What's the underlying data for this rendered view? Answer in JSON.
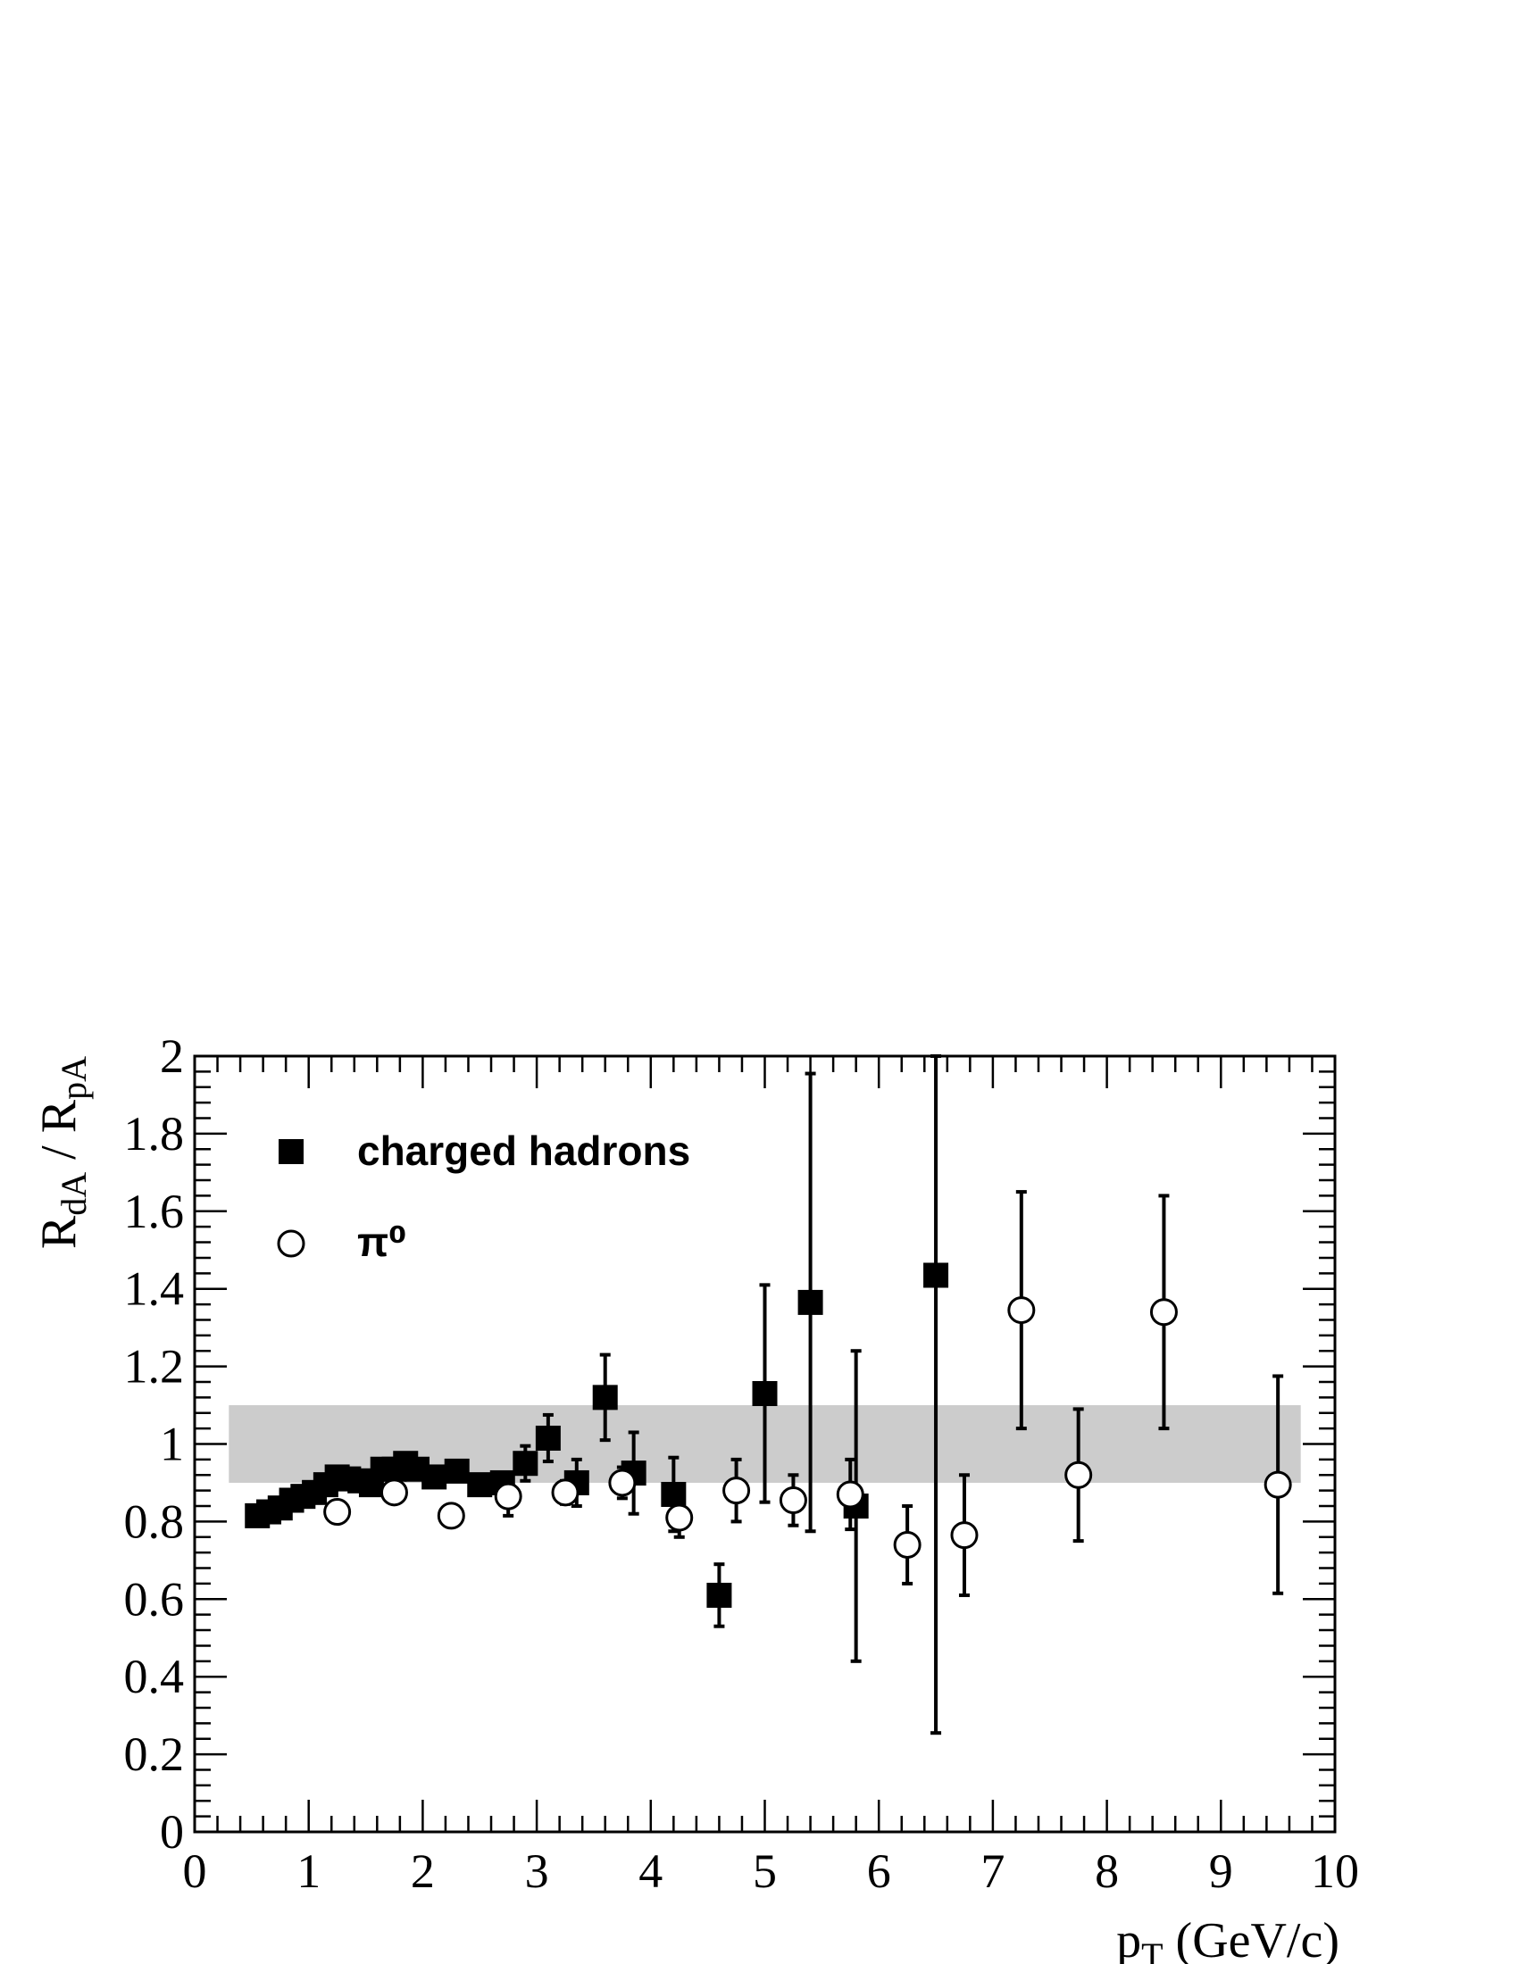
{
  "chart_data": {
    "type": "scatter",
    "title": "",
    "xlabel": {
      "main": "p",
      "sub": "T",
      "rest": " (GeV/c)"
    },
    "ylabel": {
      "r1": "R",
      "sub1": "dA",
      "sep": " / ",
      "r2": "R",
      "sub2": "pA"
    },
    "xlim": [
      0,
      10
    ],
    "ylim": [
      0,
      2
    ],
    "x_ticks": [
      "0",
      "1",
      "2",
      "3",
      "4",
      "5",
      "6",
      "7",
      "8",
      "9",
      "10"
    ],
    "y_ticks": [
      "0",
      "0.2",
      "0.4",
      "0.6",
      "0.8",
      "1",
      "1.2",
      "1.4",
      "1.6",
      "1.8",
      "2"
    ],
    "grid": false,
    "legend_position": "top-left",
    "band": {
      "x0": 0.3,
      "x1": 9.7,
      "y0": 0.9,
      "y1": 1.1,
      "color": "#cccccc"
    },
    "series": [
      {
        "name": "charged hadrons",
        "marker": "filled-square",
        "color": "#000000",
        "points": [
          {
            "x": 0.55,
            "y": 0.815,
            "err": 0.01
          },
          {
            "x": 0.65,
            "y": 0.825,
            "err": 0.01
          },
          {
            "x": 0.75,
            "y": 0.835,
            "err": 0.01
          },
          {
            "x": 0.85,
            "y": 0.855,
            "err": 0.01
          },
          {
            "x": 0.95,
            "y": 0.865,
            "err": 0.01
          },
          {
            "x": 1.05,
            "y": 0.875,
            "err": 0.01
          },
          {
            "x": 1.15,
            "y": 0.895,
            "err": 0.01
          },
          {
            "x": 1.25,
            "y": 0.915,
            "err": 0.01
          },
          {
            "x": 1.35,
            "y": 0.91,
            "err": 0.01
          },
          {
            "x": 1.45,
            "y": 0.905,
            "err": 0.01
          },
          {
            "x": 1.55,
            "y": 0.895,
            "err": 0.01
          },
          {
            "x": 1.65,
            "y": 0.935,
            "err": 0.015
          },
          {
            "x": 1.75,
            "y": 0.935,
            "err": 0.015
          },
          {
            "x": 1.85,
            "y": 0.95,
            "err": 0.015
          },
          {
            "x": 1.95,
            "y": 0.935,
            "err": 0.015
          },
          {
            "x": 2.1,
            "y": 0.915,
            "err": 0.015
          },
          {
            "x": 2.3,
            "y": 0.93,
            "err": 0.02
          },
          {
            "x": 2.5,
            "y": 0.895,
            "err": 0.02
          },
          {
            "x": 2.7,
            "y": 0.9,
            "err": 0.02
          },
          {
            "x": 2.9,
            "y": 0.95,
            "err": 0.045
          },
          {
            "x": 3.1,
            "y": 1.015,
            "err": 0.06
          },
          {
            "x": 3.35,
            "y": 0.9,
            "err": 0.06
          },
          {
            "x": 3.6,
            "y": 1.12,
            "err": 0.11
          },
          {
            "x": 3.85,
            "y": 0.925,
            "err": 0.105
          },
          {
            "x": 4.2,
            "y": 0.87,
            "err": 0.095
          },
          {
            "x": 4.6,
            "y": 0.61,
            "err": 0.08
          },
          {
            "x": 5.0,
            "y": 1.13,
            "err": 0.28
          },
          {
            "x": 5.4,
            "y": 1.365,
            "err": 0.59
          },
          {
            "x": 5.8,
            "y": 0.84,
            "err": 0.4
          },
          {
            "x": 6.5,
            "y": 1.435,
            "err": 1.18
          }
        ]
      },
      {
        "name": "π⁰",
        "marker": "open-circle",
        "color": "#000000",
        "points": [
          {
            "x": 1.25,
            "y": 0.825,
            "err": 0.01
          },
          {
            "x": 1.75,
            "y": 0.875,
            "err": 0.01
          },
          {
            "x": 2.25,
            "y": 0.815,
            "err": 0.02
          },
          {
            "x": 2.75,
            "y": 0.865,
            "err": 0.05
          },
          {
            "x": 3.25,
            "y": 0.875,
            "err": 0.03
          },
          {
            "x": 3.75,
            "y": 0.9,
            "err": 0.04
          },
          {
            "x": 4.25,
            "y": 0.81,
            "err": 0.05
          },
          {
            "x": 4.75,
            "y": 0.88,
            "err": 0.08
          },
          {
            "x": 5.25,
            "y": 0.855,
            "err": 0.065
          },
          {
            "x": 5.75,
            "y": 0.87,
            "err": 0.09
          },
          {
            "x": 6.25,
            "y": 0.74,
            "err": 0.1
          },
          {
            "x": 6.75,
            "y": 0.765,
            "err": 0.155
          },
          {
            "x": 7.25,
            "y": 1.345,
            "err": 0.305
          },
          {
            "x": 7.75,
            "y": 0.92,
            "err": 0.17
          },
          {
            "x": 8.5,
            "y": 1.34,
            "err": 0.3
          },
          {
            "x": 9.5,
            "y": 0.895,
            "err": 0.28
          }
        ]
      }
    ]
  }
}
